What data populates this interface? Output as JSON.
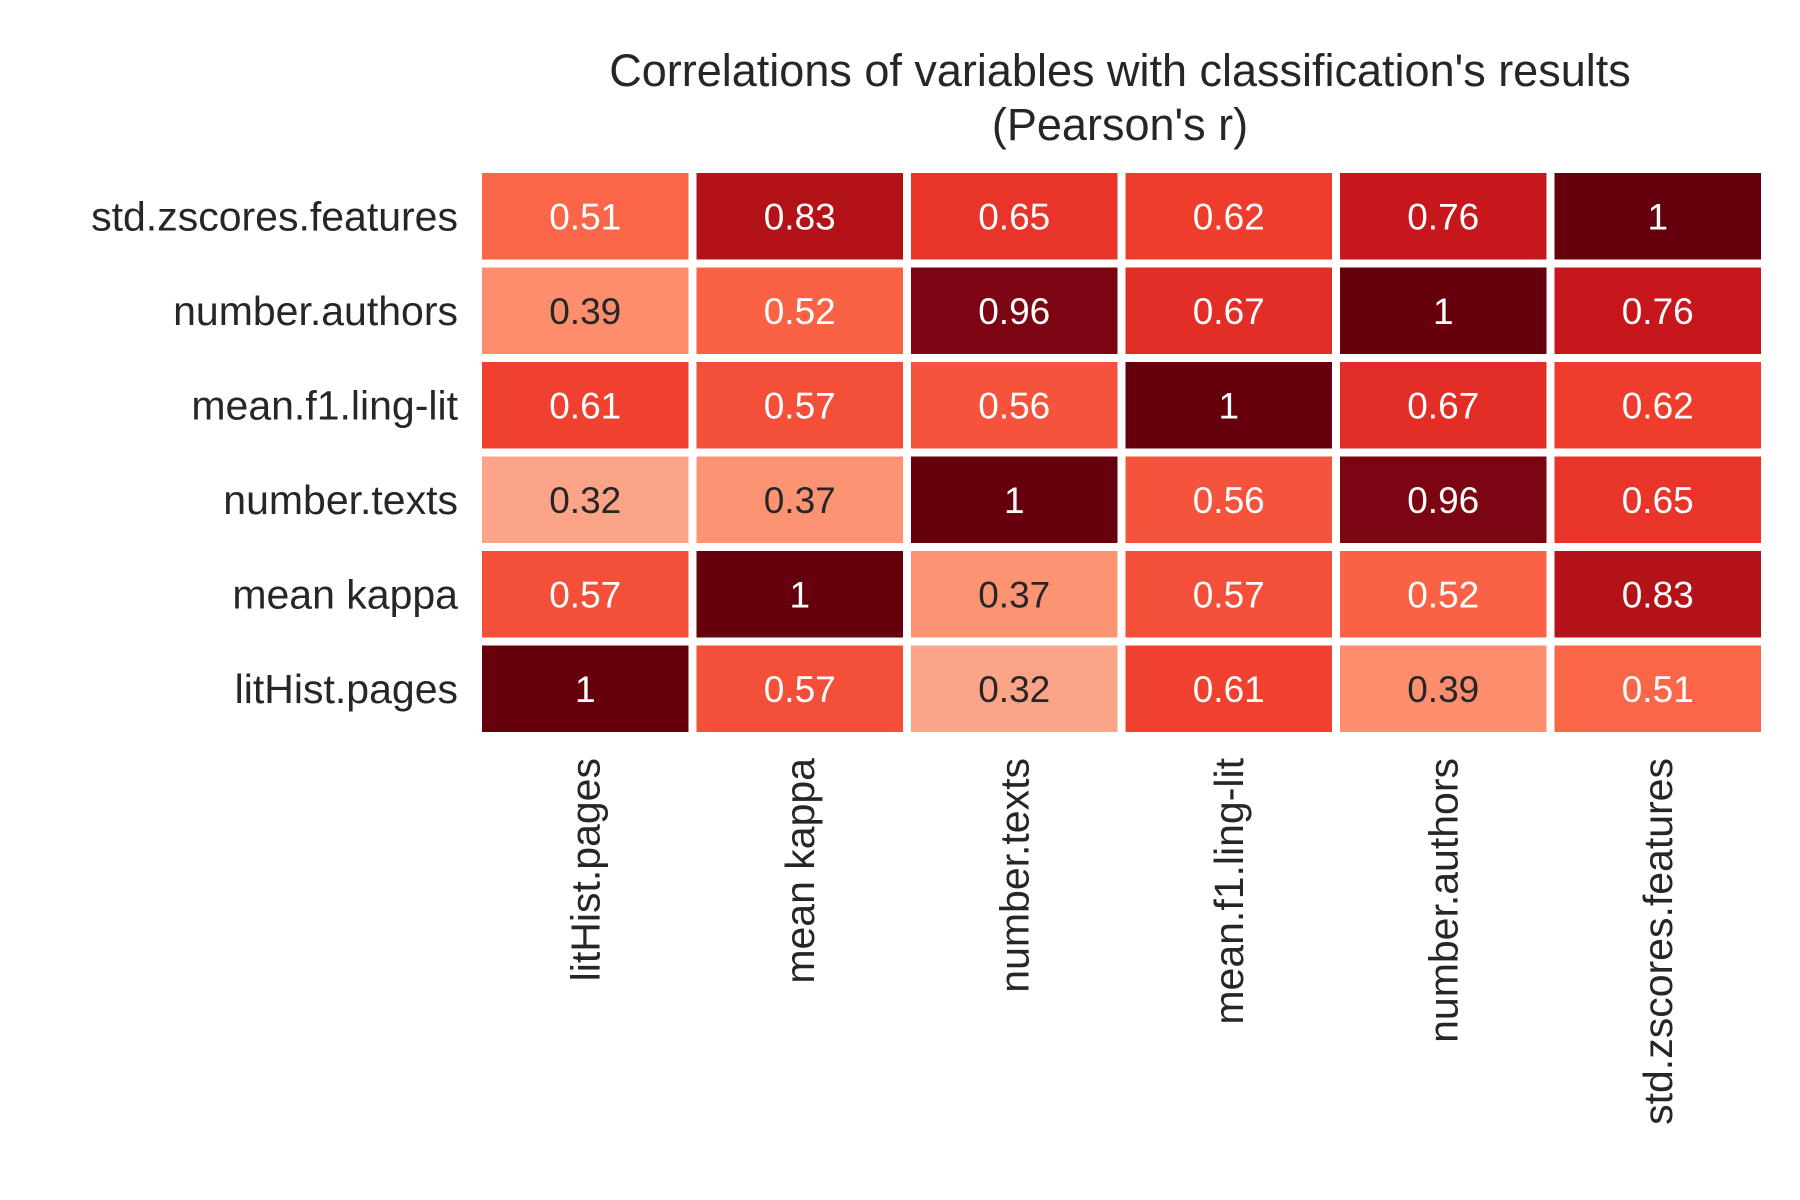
{
  "chart_data": {
    "type": "heatmap",
    "title": "Correlations of variables with classification's results",
    "subtitle": "(Pearson's r)",
    "x_categories": [
      "litHist.pages",
      "mean kappa",
      "number.texts",
      "mean.f1.ling-lit",
      "number.authors",
      "std.zscores.features"
    ],
    "y_categories": [
      "std.zscores.features",
      "number.authors",
      "mean.f1.ling-lit",
      "number.texts",
      "mean kappa",
      "litHist.pages"
    ],
    "values": [
      [
        0.51,
        0.83,
        0.65,
        0.62,
        0.76,
        1
      ],
      [
        0.39,
        0.52,
        0.96,
        0.67,
        1,
        0.76
      ],
      [
        0.61,
        0.57,
        0.56,
        1,
        0.67,
        0.62
      ],
      [
        0.32,
        0.37,
        1,
        0.56,
        0.96,
        0.65
      ],
      [
        0.57,
        1,
        0.37,
        0.57,
        0.52,
        0.83
      ],
      [
        1,
        0.57,
        0.32,
        0.61,
        0.39,
        0.51
      ]
    ],
    "value_labels": [
      [
        "0.51",
        "0.83",
        "0.65",
        "0.62",
        "0.76",
        "1"
      ],
      [
        "0.39",
        "0.52",
        "0.96",
        "0.67",
        "1",
        "0.76"
      ],
      [
        "0.61",
        "0.57",
        "0.56",
        "1",
        "0.67",
        "0.62"
      ],
      [
        "0.32",
        "0.37",
        "1",
        "0.56",
        "0.96",
        "0.65"
      ],
      [
        "0.57",
        "1",
        "0.37",
        "0.57",
        "0.52",
        "0.83"
      ],
      [
        "1",
        "0.57",
        "0.32",
        "0.61",
        "0.39",
        "0.51"
      ]
    ],
    "color_range": [
      0.32,
      1
    ],
    "colormap": "Reds",
    "colormap_stops": [
      "#fff5f0",
      "#fee0d2",
      "#fcbba1",
      "#fc9272",
      "#fb6a4a",
      "#ef3b2c",
      "#cb181d",
      "#a50f15",
      "#67000d"
    ],
    "text_color_light": "#ffffff",
    "text_color_dark": "#262626",
    "legend": "none"
  }
}
